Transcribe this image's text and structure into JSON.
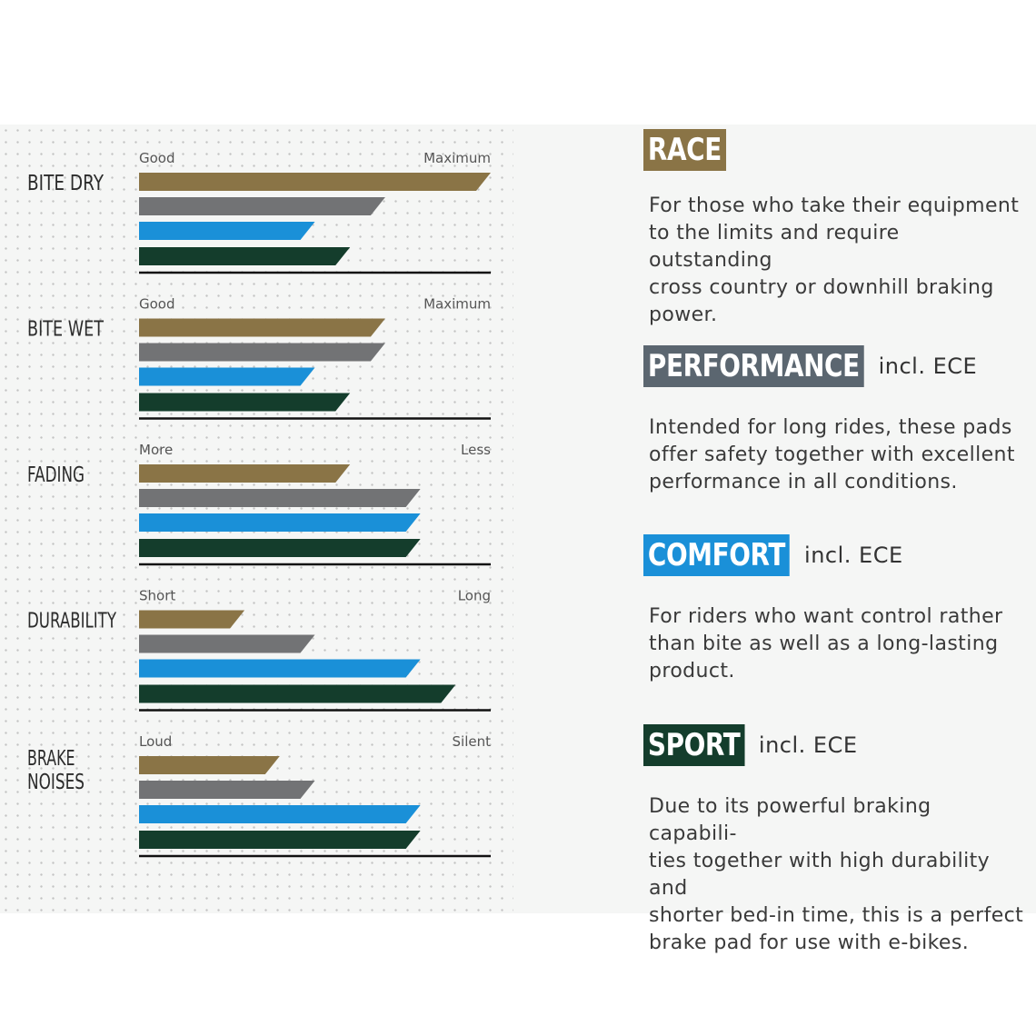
{
  "chart_data": {
    "type": "bar",
    "orientation": "horizontal",
    "value_scale": [
      0,
      10
    ],
    "series": [
      {
        "name": "RACE",
        "color": "#8a7446"
      },
      {
        "name": "PERFORMANCE",
        "color": "#727375"
      },
      {
        "name": "COMFORT",
        "color": "#1a90d8"
      },
      {
        "name": "SPORT",
        "color": "#143d2c"
      }
    ],
    "groups": [
      {
        "label": [
          "BITE DRY"
        ],
        "low": "Good",
        "high": "Maximum",
        "values": [
          10,
          7,
          5,
          6
        ]
      },
      {
        "label": [
          "BITE WET"
        ],
        "low": "Good",
        "high": "Maximum",
        "values": [
          7,
          7,
          5,
          6
        ]
      },
      {
        "label": [
          "FADING"
        ],
        "low": "More",
        "high": "Less",
        "values": [
          6,
          8,
          8,
          8
        ]
      },
      {
        "label": [
          "DURABILITY"
        ],
        "low": "Short",
        "high": "Long",
        "values": [
          3,
          5,
          8,
          9
        ]
      },
      {
        "label": [
          "BRAKE",
          "NOISES"
        ],
        "low": "Loud",
        "high": "Silent",
        "values": [
          4,
          5,
          8,
          8
        ]
      }
    ]
  },
  "products": [
    {
      "name": "RACE",
      "color": "#8a7446",
      "cert": "",
      "desc": [
        "For those who take their equipment",
        "to the limits and require outstanding",
        "cross country or downhill braking",
        "power."
      ]
    },
    {
      "name": "PERFORMANCE",
      "color": "#5b6670",
      "cert": "incl. ECE",
      "desc": [
        "Intended for long rides, these pads",
        "offer safety together with excellent",
        "performance in all conditions."
      ]
    },
    {
      "name": "COMFORT",
      "color": "#1a90d8",
      "cert": "incl. ECE",
      "desc": [
        "For riders who want control rather",
        "than bite as well as a long-lasting",
        "product."
      ]
    },
    {
      "name": "SPORT",
      "color": "#143d2c",
      "cert": "incl. ECE",
      "desc": [
        "Due to its powerful braking capabili-",
        "ties together with high durability and",
        "shorter bed-in time, this is a perfect",
        "brake pad for use with e-bikes."
      ]
    }
  ]
}
